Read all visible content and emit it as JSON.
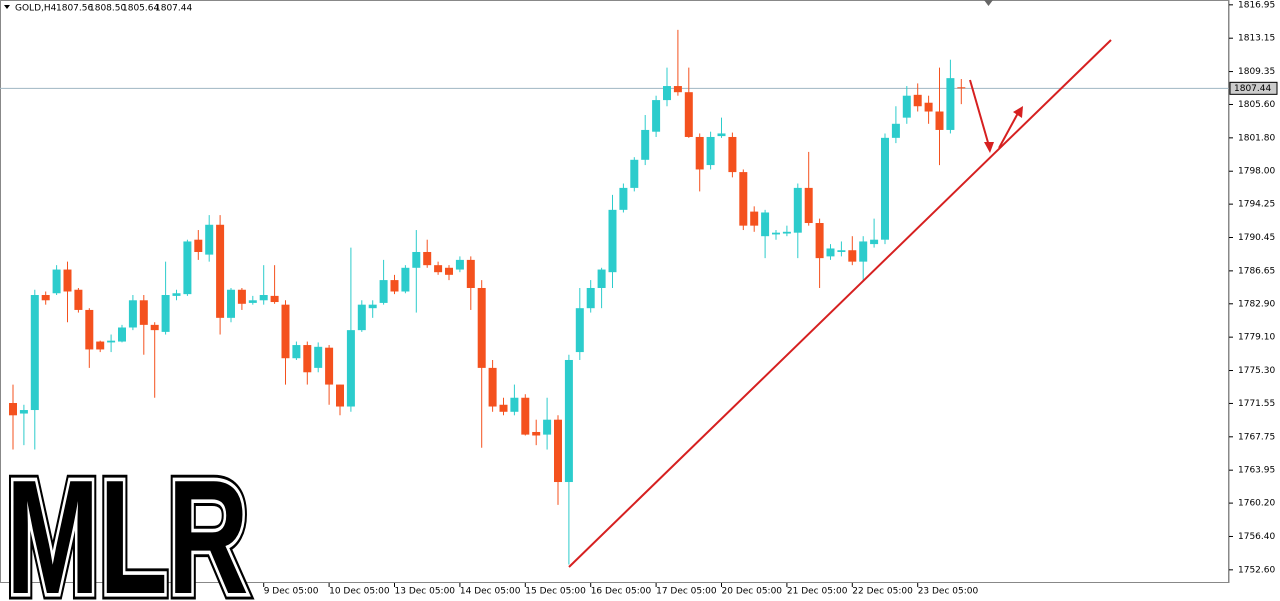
{
  "chart_data": {
    "type": "candlestick",
    "symbol": "GOLD,H4",
    "quote": [
      "1807.56",
      "1808.50",
      "1805.64",
      "1807.44"
    ],
    "watermark": "MLR",
    "up_color": "#2ccccc",
    "down_color": "#f4511e",
    "current_price": {
      "value": 1807.44,
      "label": "1807.44"
    },
    "current_color": "#9fb6c3",
    "ylim": [
      1751.1,
      1817.5
    ],
    "yticks": [
      1816.95,
      1813.15,
      1809.35,
      {
        "value": 1805.6,
        "label": "1805.60"
      },
      {
        "value": 1801.8,
        "label": "1801.80"
      },
      {
        "value": 1798,
        "label": "1798.00"
      },
      1794.25,
      1790.45,
      1786.65,
      {
        "value": 1782.9,
        "label": "1782.90"
      },
      {
        "value": 1779.1,
        "label": "1779.10"
      },
      {
        "value": 1775.3,
        "label": "1775.30"
      },
      1771.55,
      1767.75,
      1763.95,
      {
        "value": 1760.2,
        "label": "1760.20"
      },
      {
        "value": 1756.4,
        "label": "1756.40"
      },
      {
        "value": 1752.6,
        "label": "1752.60"
      }
    ],
    "grid": false,
    "categories": [
      null,
      null,
      null,
      null,
      null,
      null,
      null,
      null,
      null,
      null,
      null,
      null,
      null,
      null,
      null,
      null,
      null,
      null,
      null,
      null,
      null,
      null,
      null,
      "9 Dec 05:00",
      null,
      null,
      null,
      null,
      null,
      "10 Dec 05:00",
      null,
      null,
      null,
      null,
      null,
      "13 Dec 05:00",
      null,
      null,
      null,
      null,
      null,
      "14 Dec 05:00",
      null,
      null,
      null,
      null,
      null,
      "15 Dec 05:00",
      null,
      null,
      null,
      null,
      null,
      "16 Dec 05:00",
      null,
      null,
      null,
      null,
      null,
      "17 Dec 05:00",
      null,
      null,
      null,
      null,
      null,
      "20 Dec 05:00",
      null,
      null,
      null,
      null,
      null,
      "21 Dec 05:00",
      null,
      null,
      null,
      null,
      null,
      "22 Dec 05:00",
      null,
      null,
      null,
      null,
      null,
      "23 Dec 05:00",
      null,
      null,
      null,
      null
    ],
    "open": [
      1771.6,
      1770.4,
      1770.8,
      1783.9,
      1784.1,
      1786.8,
      1784.5,
      1782.2,
      1778.6,
      1778.5,
      1778.6,
      1780.2,
      1783.3,
      1780.5,
      1779.7,
      1783.8,
      1784.0,
      1790.2,
      1788.5,
      1791.9,
      1781.3,
      1784.5,
      1783.0,
      1783.3,
      1783.8,
      1782.8,
      1776.7,
      1778.2,
      1775.6,
      1777.9,
      1773.7,
      1771.2,
      1779.9,
      1782.4,
      1783.0,
      1785.6,
      1784.3,
      1787.0,
      1788.8,
      1787.3,
      1787.0,
      1786.8,
      1787.9,
      1784.7,
      1775.6,
      1771.4,
      1770.6,
      1772.2,
      1768.3,
      1768.0,
      1769.7,
      1762.6,
      1777.4,
      1782.4,
      1784.7,
      1786.5,
      1793.6,
      1796.1,
      1799.3,
      1802.5,
      1806.1,
      1807.7,
      1807.0,
      1801.9,
      1798.7,
      1802.0,
      1801.9,
      1797.9,
      1793.4,
      1790.6,
      1790.8,
      1790.9,
      1791.0,
      1796.1,
      1792.1,
      1788.3,
      1788.8,
      1789.0,
      1787.7,
      1789.7,
      1790.2,
      1801.8,
      1804.1,
      1806.7,
      1805.8,
      1804.8,
      1802.7,
      1807.56
    ],
    "high": [
      1773.7,
      1771.4,
      1784.5,
      1784.3,
      1787.3,
      1787.7,
      1784.7,
      1782.4,
      1778.7,
      1779.4,
      1780.5,
      1783.9,
      1783.9,
      1780.8,
      1787.7,
      1784.5,
      1790.2,
      1791.3,
      1793.0,
      1793.0,
      1784.7,
      1784.7,
      1783.8,
      1787.3,
      1787.3,
      1783.3,
      1778.6,
      1778.6,
      1778.5,
      1778.2,
      1773.7,
      1789.3,
      1783.3,
      1783.3,
      1787.9,
      1786.2,
      1787.3,
      1791.3,
      1790.2,
      1787.7,
      1787.3,
      1788.3,
      1788.3,
      1785.6,
      1776.5,
      1772.2,
      1773.7,
      1772.6,
      1769.7,
      1772.2,
      1770.2,
      1777.1,
      1784.7,
      1785.6,
      1787.0,
      1795.3,
      1796.6,
      1799.6,
      1804.4,
      1806.6,
      1809.8,
      1814.1,
      1809.8,
      1802.3,
      1802.5,
      1804.1,
      1802.4,
      1798.2,
      1794.0,
      1793.6,
      1791.3,
      1791.8,
      1796.6,
      1800.2,
      1792.6,
      1789.7,
      1790.0,
      1790.6,
      1790.6,
      1792.6,
      1802.3,
      1805.4,
      1807.7,
      1808.0,
      1806.6,
      1809.8,
      1810.7,
      1808.5
    ],
    "low": [
      1766.3,
      1766.8,
      1766.3,
      1782.8,
      1783.9,
      1780.8,
      1781.9,
      1775.6,
      1777.4,
      1777.4,
      1778.5,
      1779.9,
      1777.1,
      1772.2,
      1779.4,
      1783.3,
      1783.8,
      1787.9,
      1787.7,
      1779.4,
      1780.8,
      1782.2,
      1782.8,
      1782.8,
      1782.9,
      1773.7,
      1776.5,
      1773.7,
      1775.1,
      1771.4,
      1770.2,
      1770.6,
      1779.7,
      1781.3,
      1782.8,
      1784.0,
      1784.1,
      1781.9,
      1787.0,
      1786.2,
      1785.6,
      1786.5,
      1782.2,
      1766.5,
      1770.6,
      1770.2,
      1770.2,
      1767.9,
      1766.8,
      1766.3,
      1760.0,
      1753.2,
      1776.5,
      1781.9,
      1782.4,
      1784.7,
      1793.3,
      1795.7,
      1798.7,
      1801.9,
      1805.4,
      1806.6,
      1801.8,
      1795.7,
      1798.2,
      1801.8,
      1797.3,
      1791.3,
      1791.1,
      1788.1,
      1790.2,
      1790.6,
      1788.1,
      1791.8,
      1784.7,
      1787.9,
      1788.3,
      1787.3,
      1785.6,
      1789.3,
      1789.7,
      1801.2,
      1803.4,
      1804.8,
      1803.4,
      1798.7,
      1802.3,
      1805.64
    ],
    "close": [
      1770.2,
      1770.8,
      1783.9,
      1783.3,
      1786.8,
      1784.3,
      1782.2,
      1777.7,
      1777.7,
      1778.7,
      1780.2,
      1783.3,
      1780.5,
      1779.9,
      1783.9,
      1784.1,
      1790.0,
      1788.8,
      1791.9,
      1781.3,
      1784.5,
      1782.9,
      1783.3,
      1783.9,
      1783.1,
      1776.7,
      1778.2,
      1775.1,
      1778.0,
      1773.7,
      1771.2,
      1779.9,
      1782.8,
      1782.8,
      1785.6,
      1784.3,
      1787.0,
      1788.8,
      1787.3,
      1786.5,
      1786.2,
      1787.9,
      1784.7,
      1775.6,
      1771.2,
      1770.6,
      1772.2,
      1768.0,
      1767.9,
      1769.7,
      1762.6,
      1776.5,
      1782.4,
      1784.7,
      1786.8,
      1793.6,
      1796.1,
      1799.3,
      1802.7,
      1806.1,
      1807.7,
      1807.0,
      1801.9,
      1798.2,
      1801.9,
      1802.3,
      1797.9,
      1791.8,
      1791.8,
      1793.3,
      1791.0,
      1791.1,
      1796.1,
      1792.1,
      1788.1,
      1789.2,
      1789.0,
      1787.7,
      1790.0,
      1790.2,
      1801.8,
      1803.4,
      1806.6,
      1805.4,
      1804.8,
      1802.7,
      1808.6,
      1807.44
    ]
  }
}
